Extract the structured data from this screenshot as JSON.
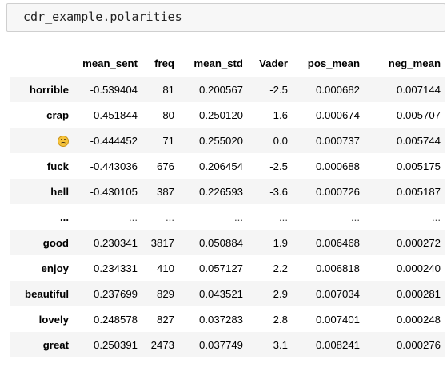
{
  "input_cell": {
    "code": "cdr_example.polarities"
  },
  "table": {
    "columns": [
      "mean_sent",
      "freq",
      "mean_std",
      "Vader",
      "pos_mean",
      "neg_mean"
    ],
    "rows": [
      {
        "index": "horrible",
        "mean_sent": "-0.539404",
        "freq": "81",
        "mean_std": "0.200567",
        "Vader": "-2.5",
        "pos_mean": "0.000682",
        "neg_mean": "0.007144"
      },
      {
        "index": "crap",
        "mean_sent": "-0.451844",
        "freq": "80",
        "mean_std": "0.250120",
        "Vader": "-1.6",
        "pos_mean": "0.000674",
        "neg_mean": "0.005707"
      },
      {
        "index": "",
        "index_icon": "slightly-frowning-face-emoji",
        "mean_sent": "-0.444452",
        "freq": "71",
        "mean_std": "0.255020",
        "Vader": "0.0",
        "pos_mean": "0.000737",
        "neg_mean": "0.005744"
      },
      {
        "index": "fuck",
        "mean_sent": "-0.443036",
        "freq": "676",
        "mean_std": "0.206454",
        "Vader": "-2.5",
        "pos_mean": "0.000688",
        "neg_mean": "0.005175"
      },
      {
        "index": "hell",
        "mean_sent": "-0.430105",
        "freq": "387",
        "mean_std": "0.226593",
        "Vader": "-3.6",
        "pos_mean": "0.000726",
        "neg_mean": "0.005187"
      },
      {
        "index": "...",
        "mean_sent": "...",
        "freq": "...",
        "mean_std": "...",
        "Vader": "...",
        "pos_mean": "...",
        "neg_mean": "..."
      },
      {
        "index": "good",
        "mean_sent": "0.230341",
        "freq": "3817",
        "mean_std": "0.050884",
        "Vader": "1.9",
        "pos_mean": "0.006468",
        "neg_mean": "0.000272"
      },
      {
        "index": "enjoy",
        "mean_sent": "0.234331",
        "freq": "410",
        "mean_std": "0.057127",
        "Vader": "2.2",
        "pos_mean": "0.006818",
        "neg_mean": "0.000240"
      },
      {
        "index": "beautiful",
        "mean_sent": "0.237699",
        "freq": "829",
        "mean_std": "0.043521",
        "Vader": "2.9",
        "pos_mean": "0.007034",
        "neg_mean": "0.000281"
      },
      {
        "index": "lovely",
        "mean_sent": "0.248578",
        "freq": "827",
        "mean_std": "0.037283",
        "Vader": "2.8",
        "pos_mean": "0.007401",
        "neg_mean": "0.000248"
      },
      {
        "index": "great",
        "mean_sent": "0.250391",
        "freq": "2473",
        "mean_std": "0.037749",
        "Vader": "3.1",
        "pos_mean": "0.008241",
        "neg_mean": "0.000276"
      }
    ]
  }
}
